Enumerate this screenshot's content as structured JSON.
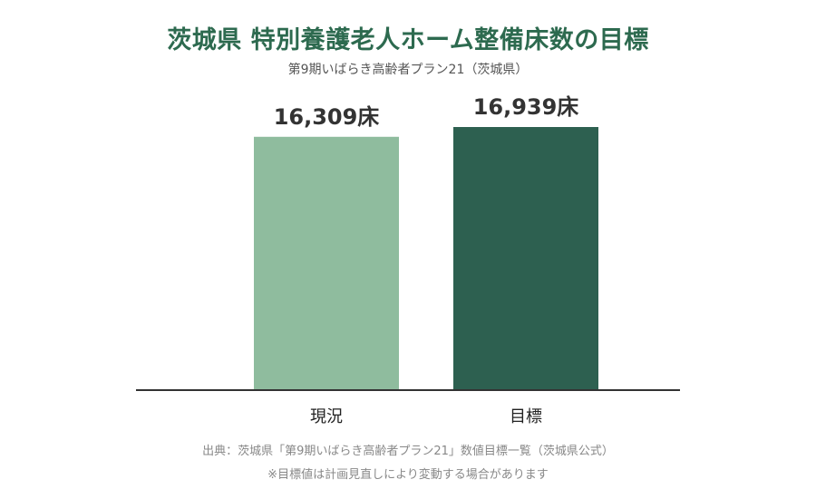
{
  "chart_data": {
    "type": "bar",
    "title": "茨城県 特別養護老人ホーム整備床数の目標",
    "subtitle": "第9期いばらき高齢者プラン21（茨城県）",
    "categories": [
      "現況",
      "目標"
    ],
    "values": [
      16309,
      16939
    ],
    "value_labels": [
      "16,309床",
      "16,939床"
    ],
    "colors": [
      "#8fbc9e",
      "#2d6050"
    ],
    "grid": false,
    "legend": "none"
  },
  "footer": {
    "source": "出典：茨城県「第9期いばらき高齢者プラン21」数値目標一覧（茨城県公式）",
    "note": "※目標値は計画見直しにより変動する場合があります"
  }
}
